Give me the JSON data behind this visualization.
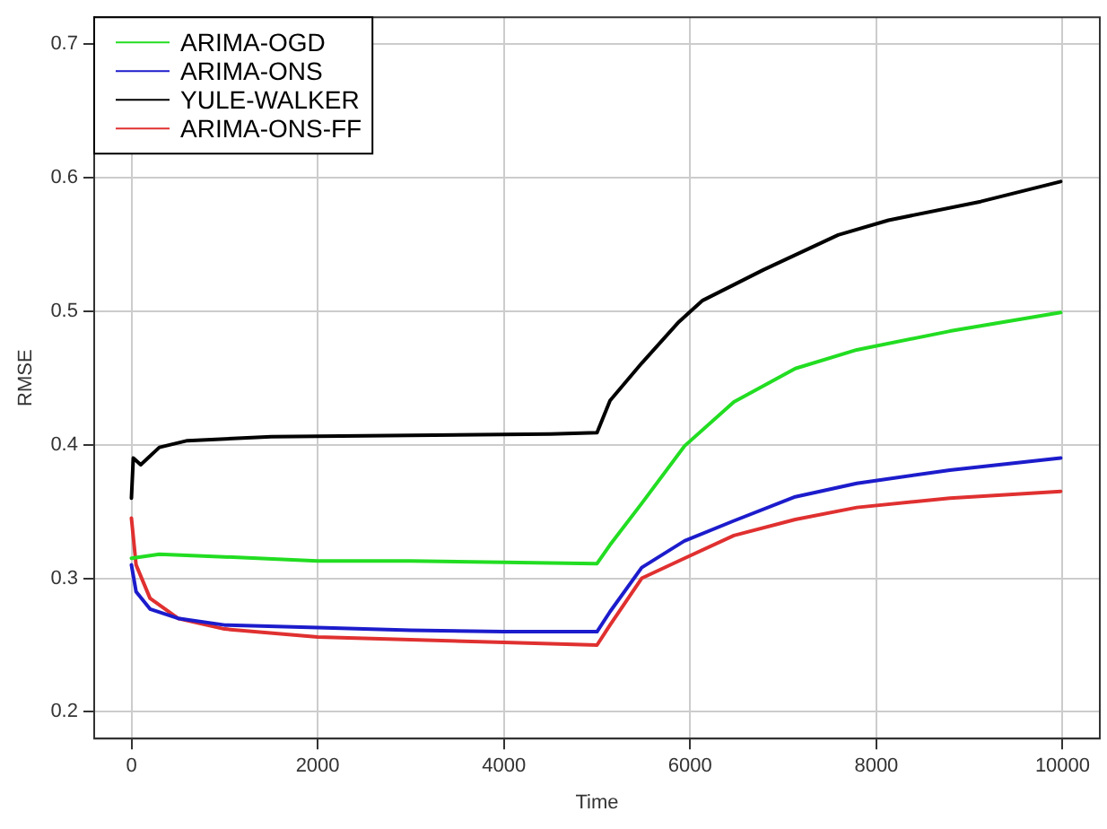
{
  "chart_data": {
    "type": "line",
    "xlabel": "Time",
    "ylabel": "RMSE",
    "xlim": [
      -400,
      10400
    ],
    "ylim": [
      0.18,
      0.72
    ],
    "xticks": [
      0,
      2000,
      4000,
      6000,
      8000,
      10000
    ],
    "yticks": [
      0.2,
      0.3,
      0.4,
      0.5,
      0.6,
      0.7
    ],
    "grid": true,
    "legend": "top left",
    "marker": "none",
    "line_style": "solid",
    "series": [
      {
        "name": "ARIMA-OGD",
        "color": "#22dd22",
        "x": [
          0,
          100,
          300,
          1000,
          2000,
          3000,
          4000,
          5000,
          5140,
          5480,
          5940,
          6470,
          7130,
          7790,
          8790,
          9980
        ],
        "values": [
          0.315,
          0.316,
          0.318,
          0.316,
          0.313,
          0.313,
          0.312,
          0.311,
          0.325,
          0.356,
          0.399,
          0.432,
          0.457,
          0.471,
          0.485,
          0.499
        ]
      },
      {
        "name": "ARIMA-ONS",
        "color": "#1c1ccc",
        "x": [
          0,
          50,
          200,
          500,
          1000,
          2000,
          3000,
          4000,
          5000,
          5140,
          5480,
          5940,
          6470,
          7130,
          7790,
          8790,
          9980
        ],
        "values": [
          0.31,
          0.29,
          0.277,
          0.27,
          0.265,
          0.263,
          0.261,
          0.26,
          0.26,
          0.275,
          0.308,
          0.328,
          0.343,
          0.361,
          0.371,
          0.381,
          0.39
        ]
      },
      {
        "name": "YULE-WALKER",
        "color": "#000000",
        "x": [
          0,
          20,
          100,
          300,
          600,
          1500,
          3000,
          4500,
          5000,
          5140,
          5480,
          5880,
          6135,
          6790,
          7590,
          8130,
          9120,
          9980
        ],
        "values": [
          0.36,
          0.39,
          0.385,
          0.398,
          0.403,
          0.406,
          0.407,
          0.408,
          0.409,
          0.433,
          0.461,
          0.492,
          0.508,
          0.531,
          0.557,
          0.568,
          0.582,
          0.597
        ]
      },
      {
        "name": "ARIMA-ONS-FF",
        "color": "#e03030",
        "x": [
          0,
          50,
          200,
          500,
          1000,
          2000,
          3000,
          4000,
          5000,
          5140,
          5480,
          5940,
          6470,
          7130,
          7790,
          8790,
          9980
        ],
        "values": [
          0.345,
          0.31,
          0.285,
          0.27,
          0.262,
          0.256,
          0.254,
          0.252,
          0.25,
          0.265,
          0.3,
          0.315,
          0.332,
          0.344,
          0.353,
          0.36,
          0.365
        ]
      }
    ]
  }
}
